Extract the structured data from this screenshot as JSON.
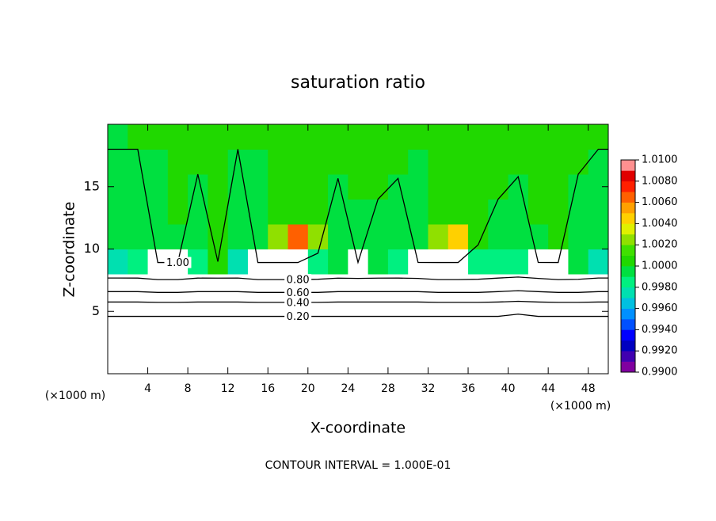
{
  "chart_data": {
    "type": "contour",
    "title": "saturation ratio",
    "xlabel": "X-coordinate",
    "ylabel": "Z-coordinate",
    "x_unit": "(×1000 m)",
    "y_unit": "(×1000 m)",
    "footer": "CONTOUR INTERVAL = 1.000E-01",
    "xlim": [
      0,
      50
    ],
    "ylim": [
      0,
      20
    ],
    "xticks": [
      4,
      8,
      12,
      16,
      20,
      24,
      28,
      32,
      36,
      40,
      44,
      48
    ],
    "yticks": [
      5,
      10,
      15
    ],
    "field": {
      "x_edges": [
        0,
        2,
        4,
        6,
        8,
        10,
        12,
        14,
        16,
        18,
        20,
        22,
        24,
        26,
        28,
        30,
        32,
        34,
        36,
        38,
        40,
        42,
        44,
        46,
        48,
        50
      ],
      "z_edges": [
        0,
        2,
        4,
        6,
        8,
        10,
        12,
        14,
        16,
        18,
        20
      ],
      "values": [
        [
          0.05,
          0.05,
          0.05,
          0.05,
          0.05,
          0.05,
          0.05,
          0.05,
          0.05,
          0.05,
          0.05,
          0.05,
          0.05,
          0.05,
          0.05,
          0.05,
          0.05,
          0.05,
          0.05,
          0.05,
          0.05,
          0.05,
          0.05,
          0.05,
          0.05
        ],
        [
          0.12,
          0.12,
          0.12,
          0.12,
          0.12,
          0.12,
          0.12,
          0.12,
          0.12,
          0.12,
          0.12,
          0.12,
          0.12,
          0.12,
          0.12,
          0.12,
          0.12,
          0.12,
          0.12,
          0.12,
          0.12,
          0.12,
          0.12,
          0.12,
          0.12
        ],
        [
          0.22,
          0.22,
          0.22,
          0.22,
          0.22,
          0.22,
          0.22,
          0.22,
          0.22,
          0.22,
          0.22,
          0.22,
          0.22,
          0.22,
          0.22,
          0.22,
          0.22,
          0.22,
          0.22,
          0.22,
          0.21,
          0.22,
          0.22,
          0.22,
          0.22
        ],
        [
          0.7,
          0.7,
          0.72,
          0.72,
          0.7,
          0.7,
          0.7,
          0.72,
          0.72,
          0.72,
          0.72,
          0.7,
          0.7,
          0.7,
          0.7,
          0.7,
          0.72,
          0.72,
          0.72,
          0.7,
          0.68,
          0.7,
          0.72,
          0.72,
          0.7
        ],
        [
          0.9972,
          0.998,
          1.012,
          1.012,
          0.9985,
          1.001,
          0.9975,
          1.012,
          1.012,
          1.012,
          0.9985,
          0.9995,
          1.012,
          0.999,
          0.998,
          1.012,
          1.012,
          1.012,
          0.998,
          0.9985,
          0.9985,
          1.012,
          1.012,
          0.999,
          0.9975
        ],
        [
          0.9993,
          0.9995,
          0.9996,
          0.9998,
          0.9996,
          1.0008,
          0.9997,
          0.9998,
          1.002,
          1.006,
          1.003,
          0.9996,
          0.9994,
          0.9995,
          0.9996,
          0.9997,
          1.002,
          1.004,
          1.001,
          0.9997,
          0.9996,
          0.9998,
          1.001,
          0.9997,
          0.9996
        ],
        [
          0.9996,
          0.9997,
          0.9998,
          1.0002,
          0.9998,
          1.0003,
          0.9999,
          0.9998,
          1.0004,
          1.0008,
          1.0005,
          0.9998,
          0.9996,
          0.9997,
          0.9997,
          0.9998,
          1.0004,
          1.0006,
          1.0003,
          0.9999,
          0.9997,
          1.0001,
          1.0002,
          0.9999,
          0.9998
        ],
        [
          0.9997,
          0.9998,
          0.9999,
          1.0002,
          0.9999,
          1.0001,
          0.9999,
          0.9998,
          1.0001,
          1.0003,
          1.0002,
          0.9999,
          1.0002,
          1.0003,
          0.9999,
          0.9998,
          1.0001,
          1.0002,
          1.0001,
          1.0001,
          0.9998,
          1.0002,
          1.0001,
          0.9999,
          0.9998
        ],
        [
          0.9998,
          0.9999,
          0.9999,
          1.0003,
          1.0001,
          1.0001,
          0.9999,
          0.9999,
          1.0001,
          1.0001,
          1.0001,
          1.0002,
          1.0004,
          1.0003,
          1.0002,
          0.9999,
          1.0001,
          1.0001,
          1.0001,
          1.0002,
          1.0003,
          1.0002,
          1.0001,
          1.0001,
          0.9999
        ],
        [
          0.9999,
          1.0001,
          1.0001,
          1.0003,
          1.0002,
          1.0001,
          1.0001,
          1.0001,
          1.0001,
          1.0001,
          1.0001,
          1.0001,
          1.0002,
          1.0002,
          1.0002,
          1.0001,
          1.0001,
          1.0001,
          1.0001,
          1.0003,
          1.0003,
          1.0002,
          1.0001,
          1.0001,
          1.0001
        ]
      ]
    },
    "contours": [
      {
        "value": 0.2,
        "label": "0.20"
      },
      {
        "value": 0.4,
        "label": "0.40"
      },
      {
        "value": 0.6,
        "label": "0.60"
      },
      {
        "value": 0.8,
        "label": "0.80"
      },
      {
        "value": 1.0,
        "label": "1.00"
      }
    ],
    "colorbar": {
      "lim": [
        0.99,
        1.01
      ],
      "colors": [
        "#8000a0",
        "#4000b0",
        "#0000c0",
        "#0000ff",
        "#0050ff",
        "#0090ff",
        "#00c0e0",
        "#00e0b0",
        "#00f080",
        "#00e040",
        "#20d800",
        "#40e000",
        "#90e000",
        "#e0f000",
        "#ffd000",
        "#ffa000",
        "#ff6000",
        "#ff2000",
        "#e00000",
        "#ff9090"
      ],
      "ticks": [
        {
          "value": 0.99,
          "label": "0.9900"
        },
        {
          "value": 0.992,
          "label": "0.9920"
        },
        {
          "value": 0.994,
          "label": "0.9940"
        },
        {
          "value": 0.996,
          "label": "0.9960"
        },
        {
          "value": 0.998,
          "label": "0.9980"
        },
        {
          "value": 1.0,
          "label": "1.0000"
        },
        {
          "value": 1.002,
          "label": "1.0020"
        },
        {
          "value": 1.004,
          "label": "1.0040"
        },
        {
          "value": 1.006,
          "label": "1.0060"
        },
        {
          "value": 1.008,
          "label": "1.0080"
        },
        {
          "value": 1.01,
          "label": "1.0100"
        }
      ]
    }
  }
}
